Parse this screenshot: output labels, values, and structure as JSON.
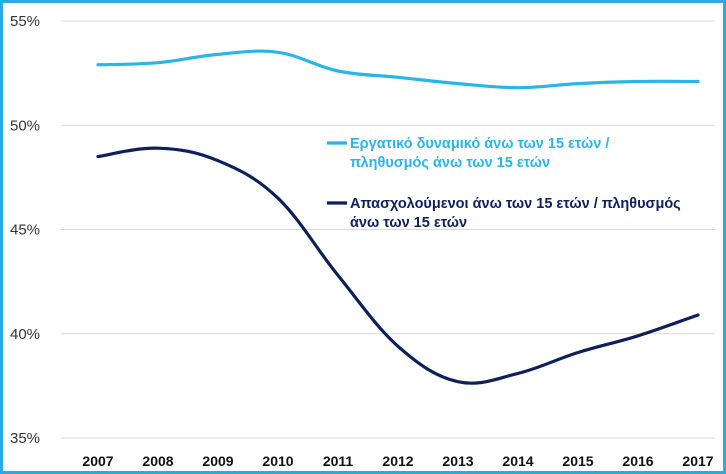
{
  "chart_data": {
    "type": "line",
    "x": [
      "2007",
      "2008",
      "2009",
      "2010",
      "2011",
      "2012",
      "2013",
      "2014",
      "2015",
      "2016",
      "2017"
    ],
    "series": [
      {
        "name": "Εργατικό δυναμικό άνω των 15 ετών / πληθυσμός άνω των 15 ετών",
        "legend_lines": [
          "Εργατικό δυναμικό άνω των 15 ετών /",
          "πληθυσμός άνω των 15 ετών"
        ],
        "color": "#29b6e6",
        "values": [
          52.9,
          53.0,
          53.4,
          53.5,
          52.6,
          52.3,
          52.0,
          51.8,
          52.0,
          52.1,
          52.1
        ]
      },
      {
        "name": "Απασχολούμενοι άνω των 15 ετών / πληθυσμός άνω των 15 ετών",
        "legend_lines": [
          "Απασχολούμενοι άνω των 15 ετών / πληθυσμός",
          "άνω των 15 ετών"
        ],
        "color": "#0e1f5b",
        "values": [
          48.5,
          48.9,
          48.3,
          46.5,
          42.8,
          39.4,
          37.7,
          38.1,
          39.1,
          39.9,
          40.9
        ]
      }
    ],
    "yticks": [
      "35%",
      "40%",
      "45%",
      "50%",
      "55%"
    ],
    "ylim": [
      35,
      55
    ],
    "grid": true,
    "legend_position": "center-right"
  }
}
